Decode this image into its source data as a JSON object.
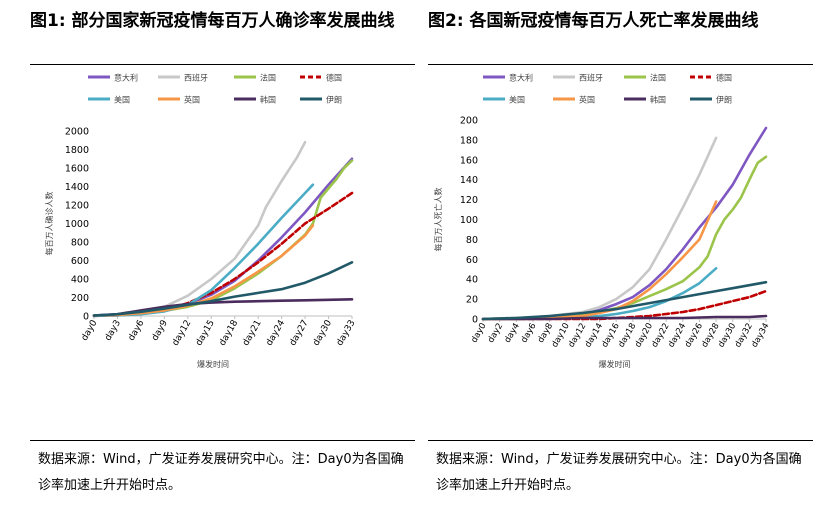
{
  "chart_data": [
    {
      "type": "line",
      "title": "图1: 部分国家新冠疫情每百万人确诊率发展曲线",
      "xlabel": "爆发时间",
      "ylabel": "每百万人确诊人数",
      "ylim": [
        0,
        2000
      ],
      "yticks": [
        0,
        200,
        400,
        600,
        800,
        1000,
        1200,
        1400,
        1600,
        1800,
        2000
      ],
      "xmax": 33,
      "xticks": [
        0,
        3,
        6,
        9,
        12,
        15,
        18,
        21,
        24,
        27,
        30,
        33
      ],
      "xtick_labels": [
        "day0",
        "day3",
        "day6",
        "day9",
        "day12",
        "day15",
        "day18",
        "day21",
        "day24",
        "day27",
        "day30",
        "day33"
      ],
      "source": "数据来源：Wind，广发证券发展研究中心。注：Day0为各国确诊率加速上升开始时点。",
      "series": [
        {
          "name": "意大利",
          "color": "#7e57c2",
          "dashed": false,
          "x": [
            0,
            3,
            6,
            9,
            12,
            15,
            18,
            21,
            24,
            27,
            30,
            33
          ],
          "values": [
            5,
            15,
            35,
            70,
            130,
            230,
            380,
            600,
            850,
            1120,
            1420,
            1700
          ]
        },
        {
          "name": "西班牙",
          "color": "#c8c8c8",
          "dashed": false,
          "x": [
            0,
            3,
            6,
            9,
            12,
            15,
            18,
            21,
            22,
            24,
            26,
            27
          ],
          "values": [
            5,
            15,
            40,
            100,
            220,
            400,
            620,
            980,
            1180,
            1460,
            1720,
            1880
          ]
        },
        {
          "name": "法国",
          "color": "#9bc44a",
          "dashed": false,
          "x": [
            0,
            3,
            6,
            9,
            12,
            15,
            18,
            21,
            24,
            27,
            28,
            29,
            30,
            31,
            32,
            33
          ],
          "values": [
            5,
            10,
            25,
            55,
            100,
            170,
            300,
            460,
            650,
            880,
            1000,
            1280,
            1380,
            1480,
            1600,
            1680
          ]
        },
        {
          "name": "德国",
          "color": "#c00000",
          "dashed": true,
          "x": [
            0,
            3,
            6,
            9,
            12,
            15,
            18,
            21,
            24,
            27,
            30,
            33
          ],
          "values": [
            2,
            8,
            25,
            60,
            140,
            250,
            400,
            580,
            780,
            1000,
            1160,
            1330
          ]
        },
        {
          "name": "美国",
          "color": "#4bacc6",
          "dashed": false,
          "x": [
            0,
            3,
            6,
            9,
            12,
            15,
            18,
            21,
            24,
            27,
            28
          ],
          "values": [
            2,
            6,
            20,
            50,
            120,
            280,
            520,
            780,
            1060,
            1330,
            1420
          ]
        },
        {
          "name": "英国",
          "color": "#f79646",
          "dashed": false,
          "x": [
            0,
            3,
            6,
            9,
            12,
            15,
            18,
            21,
            24,
            27,
            28
          ],
          "values": [
            5,
            12,
            30,
            60,
            110,
            190,
            320,
            480,
            650,
            870,
            980
          ]
        },
        {
          "name": "韩国",
          "color": "#4b2c5e",
          "dashed": false,
          "x": [
            0,
            3,
            6,
            9,
            12,
            15,
            18,
            21,
            24,
            27,
            30,
            33
          ],
          "values": [
            5,
            20,
            60,
            100,
            130,
            145,
            155,
            160,
            165,
            170,
            175,
            180
          ]
        },
        {
          "name": "伊朗",
          "color": "#215968",
          "dashed": false,
          "x": [
            0,
            3,
            6,
            9,
            12,
            15,
            18,
            21,
            24,
            27,
            30,
            33
          ],
          "values": [
            5,
            20,
            45,
            80,
            120,
            160,
            210,
            250,
            290,
            360,
            460,
            580
          ]
        }
      ]
    },
    {
      "type": "line",
      "title": "图2: 各国新冠疫情每百万人死亡率发展曲线",
      "xlabel": "爆发时间",
      "ylabel": "每百万人死亡人数",
      "ylim": [
        0,
        200
      ],
      "yticks": [
        0,
        20,
        40,
        60,
        80,
        100,
        120,
        140,
        160,
        180,
        200
      ],
      "xmax": 34,
      "xticks": [
        0,
        2,
        4,
        6,
        8,
        10,
        12,
        14,
        16,
        18,
        20,
        22,
        24,
        26,
        28,
        30,
        32,
        34
      ],
      "xtick_labels": [
        "day0",
        "day2",
        "day4",
        "day6",
        "day8",
        "day10",
        "day12",
        "day14",
        "day16",
        "day18",
        "day20",
        "day22",
        "day24",
        "day26",
        "day28",
        "day30",
        "day32",
        "day34"
      ],
      "source": "数据来源：Wind，广发证券发展研究中心。注：Day0为各国确诊率加速上升开始时点。",
      "series": [
        {
          "name": "意大利",
          "color": "#7e57c2",
          "dashed": false,
          "x": [
            0,
            4,
            8,
            12,
            14,
            16,
            18,
            20,
            22,
            24,
            26,
            28,
            30,
            32,
            34
          ],
          "values": [
            0,
            1,
            2,
            5,
            9,
            15,
            22,
            34,
            50,
            70,
            92,
            112,
            135,
            165,
            192
          ]
        },
        {
          "name": "西班牙",
          "color": "#c8c8c8",
          "dashed": false,
          "x": [
            0,
            4,
            8,
            12,
            14,
            16,
            18,
            20,
            22,
            24,
            26,
            28
          ],
          "values": [
            0,
            1,
            3,
            7,
            12,
            20,
            32,
            50,
            80,
            112,
            145,
            182
          ]
        },
        {
          "name": "法国",
          "color": "#9bc44a",
          "dashed": false,
          "x": [
            0,
            4,
            8,
            12,
            14,
            16,
            18,
            20,
            22,
            24,
            26,
            27,
            28,
            29,
            30,
            31,
            32,
            33,
            34
          ],
          "values": [
            0,
            1,
            2,
            4,
            7,
            11,
            16,
            23,
            30,
            38,
            52,
            63,
            85,
            100,
            110,
            122,
            140,
            157,
            163
          ]
        },
        {
          "name": "德国",
          "color": "#c00000",
          "dashed": true,
          "x": [
            0,
            4,
            8,
            12,
            14,
            16,
            18,
            20,
            22,
            24,
            26,
            28,
            30,
            32,
            34
          ],
          "values": [
            0,
            0,
            0,
            0,
            0,
            1,
            2,
            3,
            5,
            7,
            10,
            14,
            18,
            22,
            28
          ]
        },
        {
          "name": "美国",
          "color": "#4bacc6",
          "dashed": false,
          "x": [
            0,
            4,
            8,
            12,
            14,
            16,
            18,
            20,
            22,
            24,
            26,
            28
          ],
          "values": [
            0,
            0,
            1,
            2,
            3,
            5,
            8,
            12,
            18,
            26,
            36,
            51
          ]
        },
        {
          "name": "英国",
          "color": "#f79646",
          "dashed": false,
          "x": [
            0,
            4,
            8,
            12,
            14,
            16,
            18,
            20,
            22,
            24,
            26,
            28
          ],
          "values": [
            0,
            0,
            1,
            3,
            6,
            10,
            18,
            30,
            45,
            62,
            80,
            118
          ]
        },
        {
          "name": "韩国",
          "color": "#4b2c5e",
          "dashed": false,
          "x": [
            0,
            4,
            8,
            12,
            16,
            20,
            24,
            28,
            32,
            34
          ],
          "values": [
            0,
            0,
            0,
            1,
            1,
            1,
            1,
            2,
            2,
            3
          ]
        },
        {
          "name": "伊朗",
          "color": "#215968",
          "dashed": false,
          "x": [
            0,
            4,
            8,
            12,
            14,
            16,
            18,
            20,
            22,
            24,
            26,
            28,
            30,
            32,
            34
          ],
          "values": [
            0,
            1,
            3,
            6,
            8,
            10,
            13,
            16,
            19,
            22,
            25,
            28,
            31,
            34,
            37
          ]
        }
      ]
    }
  ]
}
